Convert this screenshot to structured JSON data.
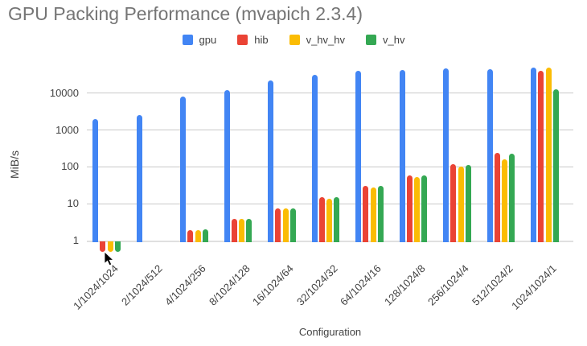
{
  "chart_data": {
    "type": "bar",
    "title": "GPU Packing Performance (mvapich 2.3.4)",
    "xlabel": "Configuration",
    "ylabel": "MiB/s",
    "y_scale": "log",
    "ylim": [
      0.49,
      67000
    ],
    "yticks": [
      1,
      10,
      100,
      1000,
      10000
    ],
    "grid": true,
    "legend_position": "top",
    "categories": [
      "1/1024/1024",
      "2/1024/512",
      "4/1024/256",
      "8/1024/128",
      "16/1024/64",
      "32/1024/32",
      "64/1024/16",
      "128/1024/8",
      "256/1024/4",
      "512/1024/2",
      "1024/1024/1"
    ],
    "series": [
      {
        "name": "gpu",
        "color": "#4285F4",
        "values": [
          2000,
          2600,
          8000,
          12000,
          22000,
          31000,
          41000,
          43000,
          47000,
          44000,
          49000
        ]
      },
      {
        "name": "hib",
        "color": "#EA4335",
        "values": [
          0.5,
          null,
          1.9,
          3.8,
          7.5,
          15,
          30,
          60,
          118,
          240,
          40000
        ]
      },
      {
        "name": "v_hv_hv",
        "color": "#FBBC04",
        "values": [
          0.5,
          null,
          1.9,
          3.8,
          7.3,
          14,
          28,
          52,
          100,
          160,
          49000
        ]
      },
      {
        "name": "v_hv",
        "color": "#34A853",
        "values": [
          0.5,
          null,
          2.0,
          3.9,
          7.6,
          15,
          30,
          60,
          115,
          225,
          12600
        ]
      }
    ],
    "theme": {
      "title_color": "#757575",
      "text_color": "#424242",
      "grid_color": "#c9c9c9",
      "baseline_color": "#e0e0e0",
      "background": "#ffffff"
    }
  }
}
